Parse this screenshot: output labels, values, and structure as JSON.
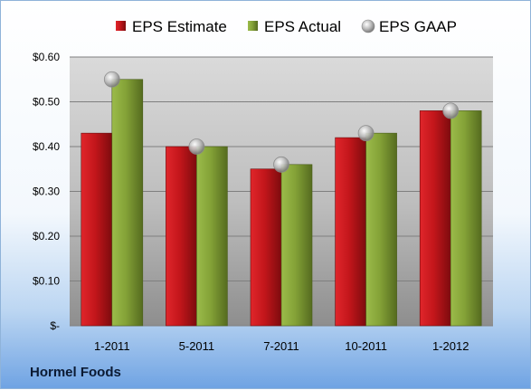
{
  "chart_data": {
    "type": "bar",
    "categories": [
      "1-2011",
      "5-2011",
      "7-2011",
      "10-2011",
      "1-2012"
    ],
    "series": [
      {
        "name": "EPS Estimate",
        "values": [
          0.43,
          0.4,
          0.35,
          0.42,
          0.48
        ],
        "color": "#c8171d"
      },
      {
        "name": "EPS Actual",
        "values": [
          0.55,
          0.4,
          0.36,
          0.43,
          0.48
        ],
        "color": "#86a33a"
      }
    ],
    "markers": {
      "name": "EPS GAAP",
      "values": [
        0.55,
        0.4,
        0.36,
        0.43,
        0.48
      ],
      "color": "#b0b0b0"
    },
    "ylim": [
      0,
      0.6
    ],
    "yticks": [
      0,
      0.1,
      0.2,
      0.3,
      0.4,
      0.5,
      0.6
    ],
    "ytick_labels": [
      "$-",
      "$0.10",
      "$0.20",
      "$0.30",
      "$0.40",
      "$0.50",
      "$0.60"
    ],
    "grid": true,
    "legend_position": "top"
  },
  "footer": {
    "company": "Hormel Foods"
  }
}
